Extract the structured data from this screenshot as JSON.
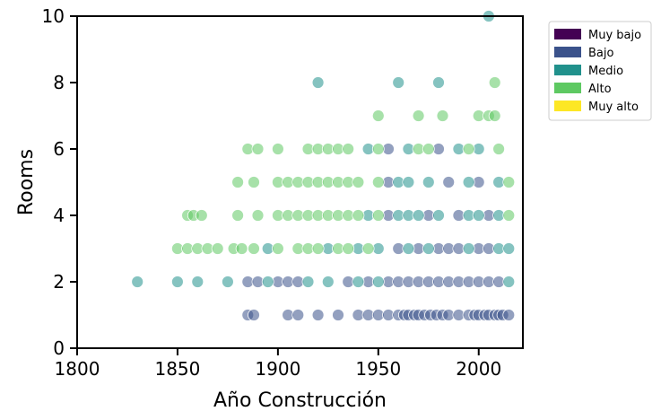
{
  "chart_data": {
    "type": "scatter",
    "xlabel": "Año Construcción",
    "ylabel": "Rooms",
    "xlim": [
      1800,
      2022
    ],
    "ylim": [
      0,
      10
    ],
    "xticks": [
      1800,
      1850,
      1900,
      1950,
      2000
    ],
    "yticks": [
      0,
      2,
      4,
      6,
      8,
      10
    ],
    "grid": false,
    "legend_position": "outside-right-top",
    "legend": [
      {
        "label": "Muy bajo",
        "color": "#440154"
      },
      {
        "label": "Bajo",
        "color": "#3b528b"
      },
      {
        "label": "Medio",
        "color": "#21918c"
      },
      {
        "label": "Alto",
        "color": "#5ec962"
      },
      {
        "label": "Muy alto",
        "color": "#fde725"
      }
    ],
    "series": [
      {
        "name": "Muy bajo",
        "color": "#440154",
        "points": []
      },
      {
        "name": "Bajo",
        "color": "#3b528b",
        "points": [
          [
            1885,
            1
          ],
          [
            1888,
            1
          ],
          [
            1905,
            1
          ],
          [
            1910,
            1
          ],
          [
            1920,
            1
          ],
          [
            1930,
            1
          ],
          [
            1940,
            1
          ],
          [
            1945,
            1
          ],
          [
            1950,
            1
          ],
          [
            1955,
            1
          ],
          [
            1960,
            1
          ],
          [
            1963,
            1
          ],
          [
            1965,
            1
          ],
          [
            1968,
            1
          ],
          [
            1970,
            1
          ],
          [
            1973,
            1
          ],
          [
            1976,
            1
          ],
          [
            1979,
            1
          ],
          [
            1982,
            1
          ],
          [
            1985,
            1
          ],
          [
            1990,
            1
          ],
          [
            1995,
            1
          ],
          [
            1998,
            1
          ],
          [
            2000,
            1
          ],
          [
            2003,
            1
          ],
          [
            2005,
            1
          ],
          [
            2008,
            1
          ],
          [
            2010,
            1
          ],
          [
            2012,
            1
          ],
          [
            2015,
            1
          ],
          [
            1885,
            2
          ],
          [
            1890,
            2
          ],
          [
            1900,
            2
          ],
          [
            1905,
            2
          ],
          [
            1910,
            2
          ],
          [
            1935,
            2
          ],
          [
            1945,
            2
          ],
          [
            1955,
            2
          ],
          [
            1960,
            2
          ],
          [
            1965,
            2
          ],
          [
            1970,
            2
          ],
          [
            1975,
            2
          ],
          [
            1980,
            2
          ],
          [
            1985,
            2
          ],
          [
            1990,
            2
          ],
          [
            1995,
            2
          ],
          [
            2000,
            2
          ],
          [
            2005,
            2
          ],
          [
            2010,
            2
          ],
          [
            1960,
            3
          ],
          [
            1970,
            3
          ],
          [
            1980,
            3
          ],
          [
            1985,
            3
          ],
          [
            1990,
            3
          ],
          [
            2000,
            3
          ],
          [
            2005,
            3
          ],
          [
            1955,
            4
          ],
          [
            1975,
            4
          ],
          [
            1990,
            4
          ],
          [
            2005,
            4
          ],
          [
            1955,
            5
          ],
          [
            1985,
            5
          ],
          [
            2000,
            5
          ],
          [
            1980,
            6
          ],
          [
            1955,
            6
          ]
        ]
      },
      {
        "name": "Medio",
        "color": "#21918c",
        "points": [
          [
            1830,
            2
          ],
          [
            1850,
            2
          ],
          [
            1860,
            2
          ],
          [
            1875,
            2
          ],
          [
            1895,
            2
          ],
          [
            1915,
            2
          ],
          [
            1925,
            2
          ],
          [
            1940,
            2
          ],
          [
            1950,
            2
          ],
          [
            2015,
            2
          ],
          [
            1895,
            3
          ],
          [
            1925,
            3
          ],
          [
            1940,
            3
          ],
          [
            1950,
            3
          ],
          [
            1965,
            3
          ],
          [
            1975,
            3
          ],
          [
            1995,
            3
          ],
          [
            2010,
            3
          ],
          [
            2015,
            3
          ],
          [
            1945,
            4
          ],
          [
            1960,
            4
          ],
          [
            1965,
            4
          ],
          [
            1970,
            4
          ],
          [
            1980,
            4
          ],
          [
            1995,
            4
          ],
          [
            2000,
            4
          ],
          [
            2010,
            4
          ],
          [
            1960,
            5
          ],
          [
            1965,
            5
          ],
          [
            1975,
            5
          ],
          [
            1995,
            5
          ],
          [
            2010,
            5
          ],
          [
            1945,
            6
          ],
          [
            1965,
            6
          ],
          [
            1990,
            6
          ],
          [
            2000,
            6
          ],
          [
            1920,
            8
          ],
          [
            1960,
            8
          ],
          [
            1980,
            8
          ],
          [
            2005,
            10
          ]
        ]
      },
      {
        "name": "Alto",
        "color": "#5ec962",
        "points": [
          [
            1850,
            3
          ],
          [
            1855,
            3
          ],
          [
            1860,
            3
          ],
          [
            1865,
            3
          ],
          [
            1870,
            3
          ],
          [
            1878,
            3
          ],
          [
            1882,
            3
          ],
          [
            1888,
            3
          ],
          [
            1900,
            3
          ],
          [
            1910,
            3
          ],
          [
            1915,
            3
          ],
          [
            1920,
            3
          ],
          [
            1930,
            3
          ],
          [
            1935,
            3
          ],
          [
            1945,
            3
          ],
          [
            1855,
            4
          ],
          [
            1858,
            4
          ],
          [
            1862,
            4
          ],
          [
            1880,
            4
          ],
          [
            1890,
            4
          ],
          [
            1900,
            4
          ],
          [
            1905,
            4
          ],
          [
            1910,
            4
          ],
          [
            1915,
            4
          ],
          [
            1920,
            4
          ],
          [
            1925,
            4
          ],
          [
            1930,
            4
          ],
          [
            1935,
            4
          ],
          [
            1940,
            4
          ],
          [
            1950,
            4
          ],
          [
            2015,
            4
          ],
          [
            1880,
            5
          ],
          [
            1888,
            5
          ],
          [
            1900,
            5
          ],
          [
            1905,
            5
          ],
          [
            1910,
            5
          ],
          [
            1915,
            5
          ],
          [
            1920,
            5
          ],
          [
            1925,
            5
          ],
          [
            1930,
            5
          ],
          [
            1935,
            5
          ],
          [
            1940,
            5
          ],
          [
            1950,
            5
          ],
          [
            2015,
            5
          ],
          [
            1885,
            6
          ],
          [
            1890,
            6
          ],
          [
            1900,
            6
          ],
          [
            1915,
            6
          ],
          [
            1920,
            6
          ],
          [
            1925,
            6
          ],
          [
            1930,
            6
          ],
          [
            1935,
            6
          ],
          [
            1950,
            6
          ],
          [
            1970,
            6
          ],
          [
            1975,
            6
          ],
          [
            1995,
            6
          ],
          [
            2010,
            6
          ],
          [
            1950,
            7
          ],
          [
            1970,
            7
          ],
          [
            1982,
            7
          ],
          [
            2000,
            7
          ],
          [
            2005,
            7
          ],
          [
            2008,
            7
          ],
          [
            2008,
            8
          ]
        ]
      },
      {
        "name": "Muy alto",
        "color": "#fde725",
        "points": []
      }
    ]
  }
}
